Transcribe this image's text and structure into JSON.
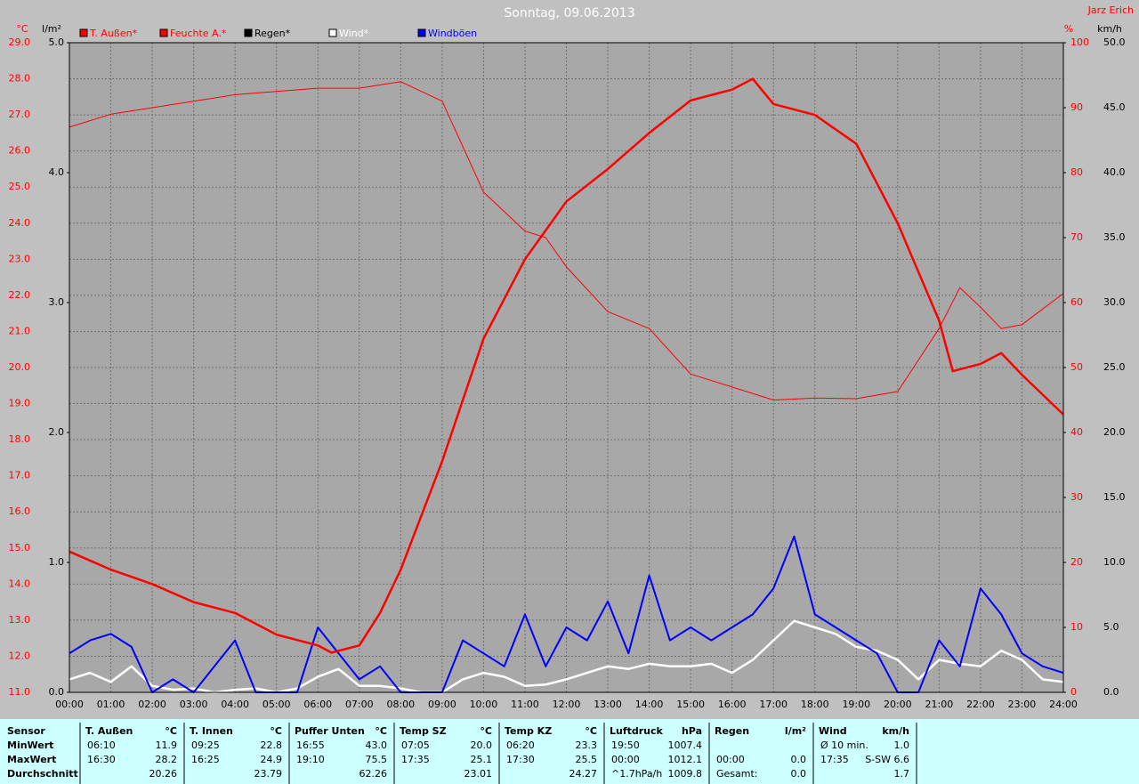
{
  "chart_data": {
    "type": "line",
    "title": "Sonntag, 09.06.2013",
    "author": "Jarz Erich",
    "y_unit": "°C",
    "y3_unit": "l/m²",
    "y2_unit": "%",
    "y4_unit": "km/h",
    "grid": true,
    "xlim": [
      0,
      24
    ],
    "xticks": [
      {
        "value": 0,
        "label": "00:00"
      },
      {
        "value": 1,
        "label": "01:00"
      },
      {
        "value": 2,
        "label": "02:00"
      },
      {
        "value": 3,
        "label": "03:00"
      },
      {
        "value": 4,
        "label": "04:00"
      },
      {
        "value": 5,
        "label": "05:00"
      },
      {
        "value": 6,
        "label": "06:00"
      },
      {
        "value": 7,
        "label": "07:00"
      },
      {
        "value": 8,
        "label": "08:00"
      },
      {
        "value": 9,
        "label": "09:00"
      },
      {
        "value": 10,
        "label": "10:00"
      },
      {
        "value": 11,
        "label": "11:00"
      },
      {
        "value": 12,
        "label": "12:00"
      },
      {
        "value": 13,
        "label": "13:00"
      },
      {
        "value": 14,
        "label": "14:00"
      },
      {
        "value": 15,
        "label": "15:00"
      },
      {
        "value": 16,
        "label": "16:00"
      },
      {
        "value": 17,
        "label": "17:00"
      },
      {
        "value": 18,
        "label": "18:00"
      },
      {
        "value": 19,
        "label": "19:00"
      },
      {
        "value": 20,
        "label": "20:00"
      },
      {
        "value": 21,
        "label": "21:00"
      },
      {
        "value": 22,
        "label": "22:00"
      },
      {
        "value": 23,
        "label": "23:00"
      },
      {
        "value": 24,
        "label": "24:00"
      }
    ],
    "ylim": [
      11,
      29
    ],
    "yticks": [
      {
        "value": 11,
        "label": "11.0"
      },
      {
        "value": 12,
        "label": "12.0"
      },
      {
        "value": 13,
        "label": "13.0"
      },
      {
        "value": 14,
        "label": "14.0"
      },
      {
        "value": 15,
        "label": "15.0"
      },
      {
        "value": 16,
        "label": "16.0"
      },
      {
        "value": 17,
        "label": "17.0"
      },
      {
        "value": 18,
        "label": "18.0"
      },
      {
        "value": 19,
        "label": "19.0"
      },
      {
        "value": 20,
        "label": "20.0"
      },
      {
        "value": 21,
        "label": "21.0"
      },
      {
        "value": 22,
        "label": "22.0"
      },
      {
        "value": 23,
        "label": "23.0"
      },
      {
        "value": 24,
        "label": "24.0"
      },
      {
        "value": 25,
        "label": "25.0"
      },
      {
        "value": 26,
        "label": "26.0"
      },
      {
        "value": 27,
        "label": "27.0"
      },
      {
        "value": 28,
        "label": "28.0"
      },
      {
        "value": 29,
        "label": "29.0"
      }
    ],
    "y3lim": [
      0,
      5
    ],
    "y3ticks": [
      {
        "value": 0,
        "label": "0.0"
      },
      {
        "value": 1,
        "label": "1.0"
      },
      {
        "value": 2,
        "label": "2.0"
      },
      {
        "value": 3,
        "label": "3.0"
      },
      {
        "value": 4,
        "label": "4.0"
      },
      {
        "value": 5,
        "label": "5.0"
      }
    ],
    "y2lim": [
      0,
      100
    ],
    "y2ticks": [
      0,
      10,
      20,
      30,
      40,
      50,
      60,
      70,
      80,
      90,
      100
    ],
    "y4lim": [
      0,
      50
    ],
    "y4ticks": [
      {
        "value": 0,
        "label": "0.0"
      },
      {
        "value": 5,
        "label": "5.0"
      },
      {
        "value": 10,
        "label": "10.0"
      },
      {
        "value": 15,
        "label": "15.0"
      },
      {
        "value": 20,
        "label": "20.0"
      },
      {
        "value": 25,
        "label": "25.0"
      },
      {
        "value": 30,
        "label": "30.0"
      },
      {
        "value": 35,
        "label": "35.0"
      },
      {
        "value": 40,
        "label": "40.0"
      },
      {
        "value": 45,
        "label": "45.0"
      },
      {
        "value": 50,
        "label": "50.0"
      }
    ],
    "series": [
      {
        "name": "T. Außen*",
        "color": "#ff0000",
        "axis": "y",
        "width": 2.5,
        "x": [
          0,
          1,
          2,
          3,
          4,
          5,
          6,
          6.33,
          7,
          7.5,
          8,
          9,
          10,
          11,
          12,
          13,
          14,
          15,
          16,
          16.5,
          17,
          18,
          19,
          20,
          21,
          21.33,
          22,
          22.5,
          23,
          24
        ],
        "values": [
          14.9,
          14.4,
          14.0,
          13.5,
          13.2,
          12.6,
          12.3,
          12.1,
          12.3,
          13.2,
          14.4,
          17.4,
          20.8,
          23.0,
          24.6,
          25.5,
          26.5,
          27.4,
          27.7,
          28.0,
          27.3,
          27.0,
          26.2,
          24.0,
          21.3,
          19.9,
          20.1,
          20.4,
          19.8,
          18.7
        ]
      },
      {
        "name": "Feuchte A.*",
        "color": "#ff0000",
        "axis": "y2",
        "width": 1,
        "x": [
          0,
          1,
          2,
          3,
          4,
          5,
          6,
          7,
          8,
          9,
          10,
          11,
          11.5,
          12,
          13,
          14,
          15,
          16,
          17,
          18,
          19,
          20,
          21,
          21.5,
          22,
          22.5,
          23,
          24
        ],
        "values": [
          87,
          89,
          90,
          91,
          92,
          92.5,
          93,
          93,
          94,
          91,
          77,
          71,
          70,
          65.5,
          58.6,
          56,
          49,
          47,
          45,
          45.3,
          45.2,
          46.3,
          56,
          62.3,
          59.3,
          56,
          56.6,
          61.4
        ]
      },
      {
        "name": "Regen*",
        "color": "#000000",
        "axis": "y3"
      },
      {
        "name": "Wind*",
        "color": "#ffffff",
        "axis": "y4",
        "width": 2.5,
        "x": [
          0,
          0.5,
          1,
          1.5,
          2,
          2.5,
          3,
          3.5,
          4,
          4.5,
          5,
          5.5,
          6,
          6.5,
          7,
          7.5,
          8,
          8.5,
          9,
          9.5,
          10,
          10.5,
          11,
          11.5,
          12,
          12.5,
          13,
          13.5,
          14,
          14.5,
          15,
          15.5,
          16,
          16.5,
          17,
          17.5,
          18,
          18.5,
          19,
          19.5,
          20,
          20.5,
          21,
          21.5,
          22,
          22.5,
          23,
          23.5,
          24
        ],
        "values": [
          1.0,
          1.5,
          0.8,
          2.0,
          0.5,
          0.2,
          0.3,
          0.0,
          0.2,
          0.3,
          0,
          0.3,
          1.2,
          1.8,
          0.5,
          0.5,
          0.3,
          0,
          0,
          1.0,
          1.5,
          1.2,
          0.5,
          0.6,
          1.0,
          1.5,
          2.0,
          1.8,
          2.2,
          2.0,
          2.0,
          2.2,
          1.5,
          2.5,
          4.0,
          5.5,
          5.0,
          4.5,
          3.5,
          3.2,
          2.5,
          1.0,
          2.5,
          2.2,
          2.0,
          3.2,
          2.5,
          1.0,
          0.8
        ]
      },
      {
        "name": "Windböen",
        "color": "#0000ff",
        "axis": "y4",
        "width": 2,
        "x": [
          0,
          0.5,
          1,
          1.5,
          2,
          2.5,
          3,
          3.5,
          4,
          4.5,
          5,
          5.5,
          6,
          6.5,
          7,
          7.5,
          8,
          8.5,
          9,
          9.5,
          10,
          10.5,
          11,
          11.5,
          12,
          12.5,
          13,
          13.5,
          14,
          14.5,
          15,
          15.5,
          16,
          16.5,
          17,
          17.5,
          18,
          18.5,
          19,
          19.5,
          20,
          20.5,
          21,
          21.5,
          22,
          22.5,
          23,
          23.5,
          24
        ],
        "values": [
          3,
          4,
          4.5,
          3.5,
          0,
          1,
          0,
          2,
          4,
          0,
          0,
          0,
          5,
          3,
          1,
          2,
          0,
          0,
          0,
          4,
          3,
          2,
          6,
          2,
          5,
          4,
          7,
          3,
          9,
          4,
          5,
          4,
          5,
          6,
          8,
          12,
          6,
          5,
          4,
          3,
          0,
          0,
          4,
          2,
          8,
          6,
          3,
          2,
          1.5
        ]
      }
    ]
  },
  "table": {
    "labels": [
      "Sensor",
      "MinWert",
      "MaxWert",
      "Durchschnitt"
    ],
    "columns": [
      {
        "header": "T. Außen",
        "unit": "°C",
        "rows": [
          [
            "06:10",
            "11.9"
          ],
          [
            "16:30",
            "28.2"
          ],
          [
            "20.26"
          ]
        ]
      },
      {
        "header": "T. Innen",
        "unit": "°C",
        "rows": [
          [
            "09:25",
            "22.8"
          ],
          [
            "16:25",
            "24.9"
          ],
          [
            "23.79"
          ]
        ]
      },
      {
        "header": "Puffer Unten",
        "unit": "°C",
        "rows": [
          [
            "16:55",
            "43.0"
          ],
          [
            "19:10",
            "75.5"
          ],
          [
            "62.26"
          ]
        ]
      },
      {
        "header": "Temp SZ",
        "unit": "°C",
        "rows": [
          [
            "07:05",
            "20.0"
          ],
          [
            "17:35",
            "25.1"
          ],
          [
            "23.01"
          ]
        ]
      },
      {
        "header": "Temp KZ",
        "unit": "°C",
        "rows": [
          [
            "06:20",
            "23.3"
          ],
          [
            "17:30",
            "25.5"
          ],
          [
            "24.27"
          ]
        ]
      },
      {
        "header": "Luftdruck",
        "unit": "hPa",
        "rows": [
          [
            "19:50",
            "1007.4"
          ],
          [
            "00:00",
            "1012.1"
          ],
          [
            "^1.7hPa/h",
            "1009.8"
          ]
        ]
      },
      {
        "header": "Regen",
        "unit": "l/m²",
        "rows": [
          null,
          [
            "00:00",
            "0.0"
          ],
          [
            "Gesamt:",
            "0.0"
          ]
        ]
      },
      {
        "header": "Wind",
        "unit": "km/h",
        "rows": [
          [
            "Ø 10 min.",
            "1.0"
          ],
          [
            "17:35",
            "S-SW 6.6"
          ],
          [
            "1.7"
          ]
        ]
      }
    ]
  }
}
